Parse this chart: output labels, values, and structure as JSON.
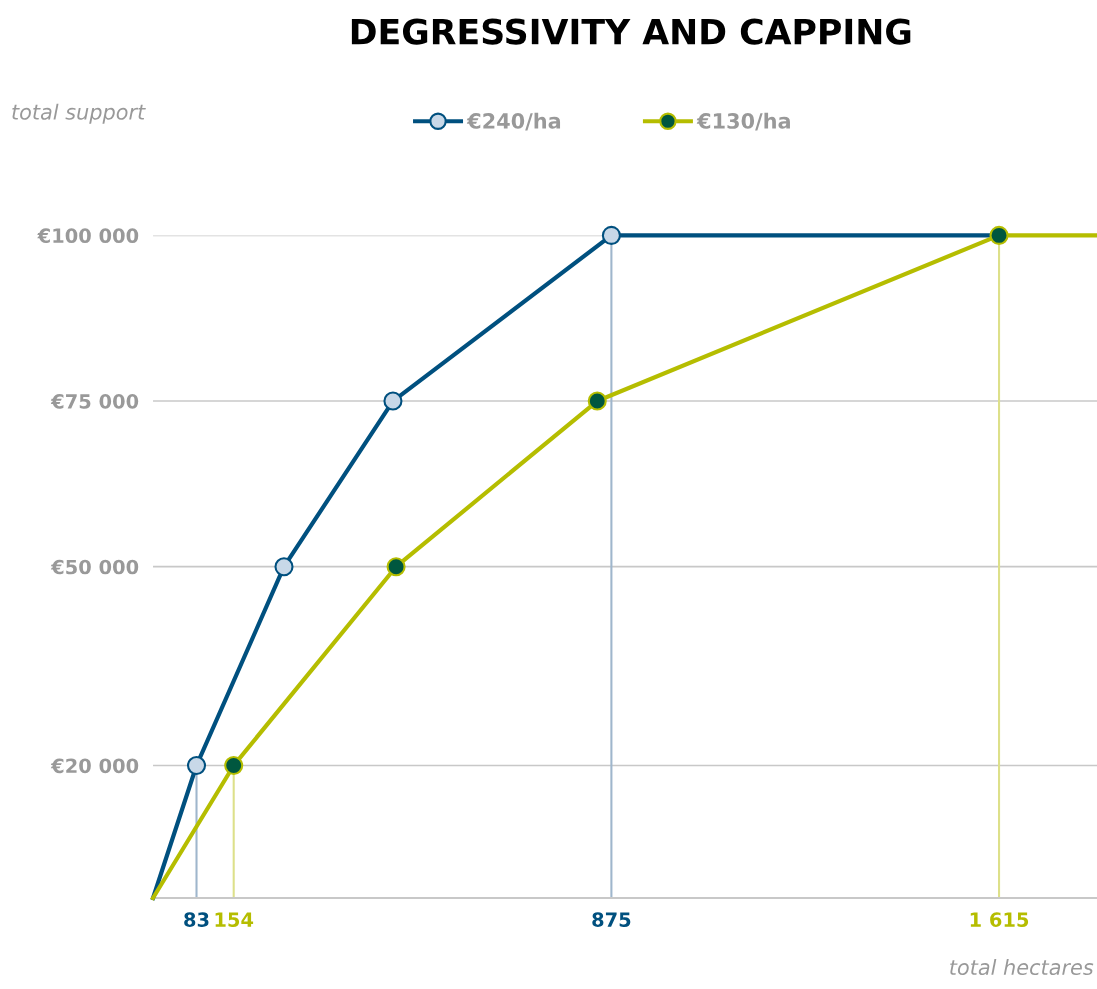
{
  "chart_data": {
    "type": "line",
    "title": "DEGRESSIVITY AND CAPPING",
    "xlabel": "total hectares",
    "annotations": [
      "total support"
    ],
    "xlim": [
      0,
      1802
    ],
    "ylim": [
      0,
      100000
    ],
    "xticks": [
      {
        "value": 83,
        "label": "83"
      },
      {
        "value": 154,
        "label": "154"
      },
      {
        "value": 875,
        "label": "875"
      },
      {
        "value": 1615,
        "label": "1 615"
      }
    ],
    "yticks": [
      {
        "value": 20000,
        "label": "€20 000"
      },
      {
        "value": 50000,
        "label": "€50 000"
      },
      {
        "value": 75000,
        "label": "€75 000"
      },
      {
        "value": 100000,
        "label": "€100 000"
      }
    ],
    "series": [
      {
        "name": "€240/ha",
        "color": "#00507f",
        "x": [
          0,
          83,
          250,
          458,
          875,
          1615
        ],
        "values": [
          0,
          20000,
          50000,
          75000,
          100000,
          100000
        ],
        "colors": [
          null,
          "#c8d8e8",
          "#c8d8e8",
          "#c8d8e8",
          "#c8d8e8",
          null
        ]
      },
      {
        "name": "€130/ha",
        "color": "#b5bd00",
        "x": [
          0,
          154,
          464,
          848,
          1615,
          1802
        ],
        "values": [
          0,
          20000,
          50000,
          75000,
          100000,
          100000
        ],
        "colors": [
          null,
          "#00573f",
          "#00573f",
          "#00573f",
          "#00573f",
          null
        ]
      }
    ],
    "ref_lines": [
      {
        "axis": "x",
        "value": 83,
        "color": "#9fb6cc"
      },
      {
        "axis": "x",
        "value": 875,
        "color": "#9fb6cc"
      },
      {
        "axis": "x",
        "value": 154,
        "color": "#dde08a"
      },
      {
        "axis": "x",
        "value": 1615,
        "color": "#dde08a"
      }
    ],
    "grid": "y",
    "legend": "top",
    "marker": "circle",
    "line_style": "solid"
  }
}
